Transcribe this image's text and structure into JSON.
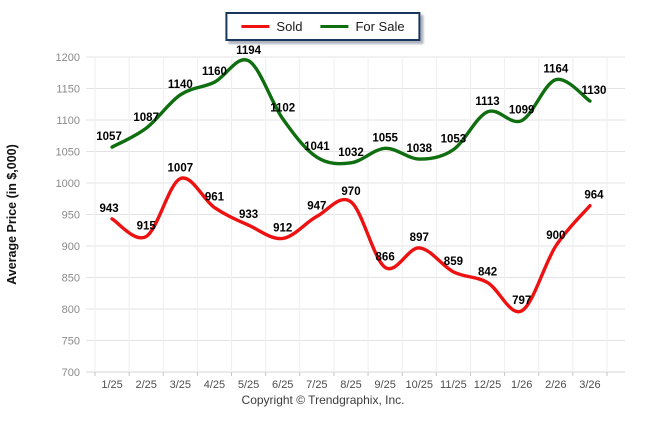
{
  "chart_data": {
    "type": "line",
    "title": "",
    "xlabel": "",
    "ylabel": "Average Price (in $,000)",
    "ylim": [
      700,
      1200
    ],
    "yticks": [
      700,
      750,
      800,
      850,
      900,
      950,
      1000,
      1050,
      1100,
      1150,
      1200
    ],
    "grid": true,
    "legend_position": "top-center",
    "categories": [
      "1/25",
      "2/25",
      "3/25",
      "4/25",
      "5/25",
      "6/25",
      "7/25",
      "8/25",
      "9/25",
      "10/25",
      "11/25",
      "12/25",
      "1/26",
      "2/26",
      "3/26"
    ],
    "series": [
      {
        "name": "Sold",
        "color": "#ee1111",
        "values": [
          943,
          915,
          1007,
          961,
          933,
          912,
          947,
          970,
          866,
          897,
          859,
          842,
          797,
          900,
          964
        ]
      },
      {
        "name": "For Sale",
        "color": "#0f6e0f",
        "values": [
          1057,
          1087,
          1140,
          1160,
          1194,
          1102,
          1041,
          1032,
          1055,
          1038,
          1053,
          1113,
          1099,
          1164,
          1130
        ]
      }
    ],
    "colors": {
      "data_label": "#000000",
      "y_tick_label": "#8a8a8a",
      "x_tick_label": "#4d4d4d",
      "grid_horizontal": "#e3e3e3",
      "grid_vertical": "#eeeeee",
      "axis_baseline": "#d6d6d6",
      "tick_mark": "#c6c6c6",
      "axis_title": "#111111"
    }
  },
  "footer": {
    "copyright": "Copyright © Trendgraphix, Inc."
  }
}
